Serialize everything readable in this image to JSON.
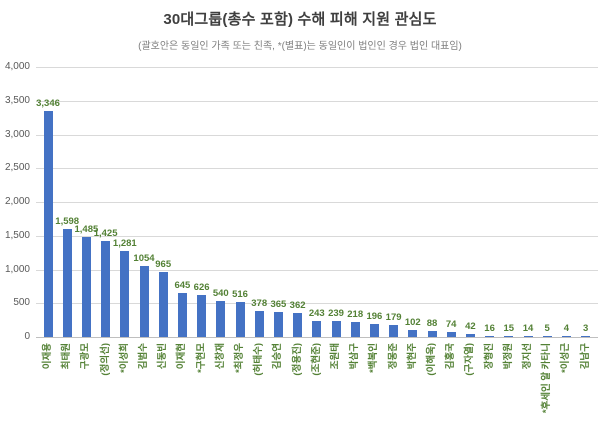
{
  "title": "30대그룹(총수 포함) 수해 피해 지원 관심도",
  "subtitle": "(괄호안은 동일인 가족 또는 친족, *(별표)는 동일인이 법인인 경우 법인 대표임)",
  "chart_data": {
    "type": "bar",
    "title": "30대그룹(총수 포함) 수해 피해 지원 관심도",
    "subtitle": "(괄호안은 동일인 가족 또는 친족, *(별표)는 동일인이 법인인 경우 법인 대표임)",
    "categories": [
      "이재용",
      "최태원",
      "구광모",
      "(정의선)",
      "*이성희",
      "김범수",
      "신동빈",
      "이재현",
      "*구현모",
      "신창재",
      "*최정우",
      "(허태수)",
      "김승연",
      "(정용진)",
      "(조현준)",
      "조원태",
      "박삼구",
      "*백복인",
      "정몽준",
      "박현주",
      "(이해욱)",
      "김홍국",
      "(구자열)",
      "장형진",
      "박정원",
      "정지선",
      "*후세인 알 카타니",
      "*이성근",
      "김남구"
    ],
    "values": [
      3346,
      1598,
      1485,
      1425,
      1281,
      1054,
      965,
      645,
      626,
      540,
      516,
      378,
      365,
      362,
      243,
      239,
      218,
      196,
      179,
      102,
      88,
      74,
      42,
      16,
      15,
      14,
      5,
      4,
      3
    ],
    "value_labels": [
      "3,346",
      "1,598",
      "1,485",
      "1,425",
      "1,281",
      "1054",
      "965",
      "645",
      "626",
      "540",
      "516",
      "378",
      "365",
      "362",
      "243",
      "239",
      "218",
      "196",
      "179",
      "102",
      "88",
      "74",
      "42",
      "16",
      "15",
      "14",
      "5",
      "4",
      "3"
    ],
    "xlabel": "",
    "ylabel": "",
    "ylim": [
      0,
      4000
    ],
    "ytick_interval": 500,
    "yticks": [
      "4,000",
      "3,500",
      "3,000",
      "2,500",
      "2,000",
      "1,500",
      "1,000",
      "500",
      "0"
    ],
    "grid": true,
    "legend_position": "none",
    "bar_color": "#4472C4",
    "data_label_color": "#538135",
    "category_label_color": "#538135",
    "ytick_color": "#595959",
    "gridline_color": "#d9d9d9",
    "axis_line_color": "#bfbfbf"
  }
}
